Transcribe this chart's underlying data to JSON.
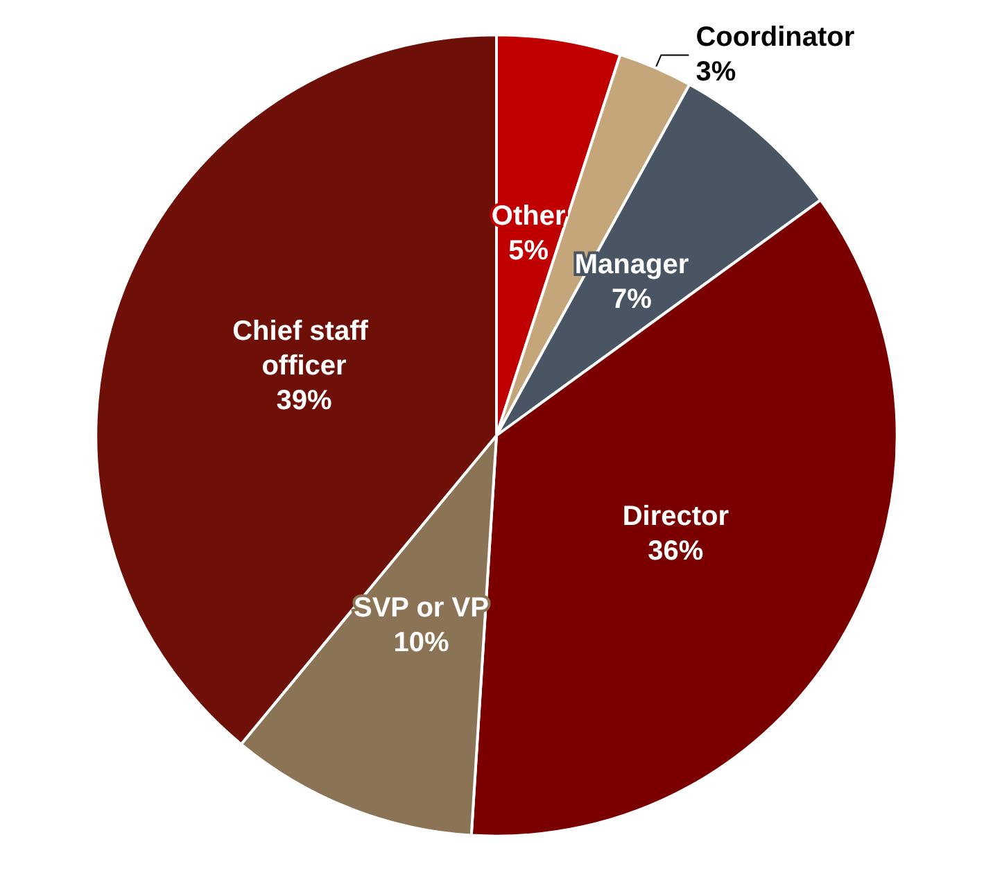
{
  "chart_data": {
    "type": "pie",
    "categories": [
      "Other",
      "Coordinator",
      "Manager",
      "Director",
      "SVP or VP",
      "Chief staff officer"
    ],
    "values": [
      5,
      3,
      7,
      36,
      10,
      39
    ],
    "colors": [
      "#c00000",
      "#c4a67a",
      "#4a5563",
      "#7a0000",
      "#8b7355",
      "#6e1008"
    ],
    "value_labels": [
      "5%",
      "3%",
      "7%",
      "36%",
      "10%",
      "39%"
    ],
    "legend": false
  }
}
